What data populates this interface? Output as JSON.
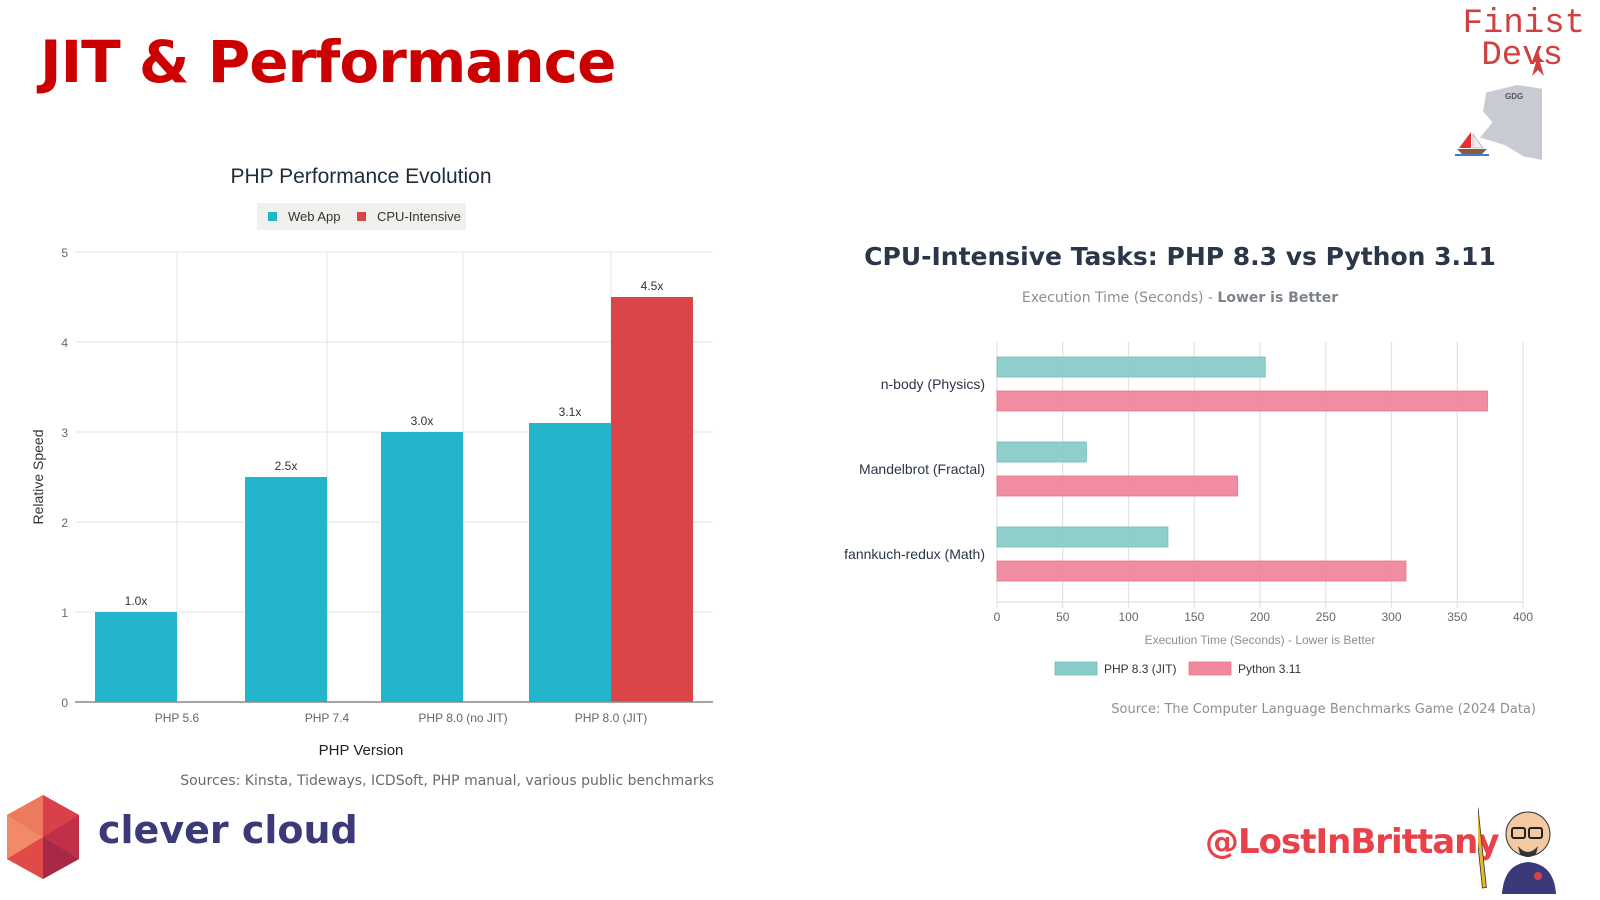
{
  "slide": {
    "title": "JIT & Performance",
    "brand_logo_text_line1": "Finist",
    "brand_logo_text_line2": "Devs",
    "gdg_label": "GDG",
    "footer_left_logo_text": "clever cloud",
    "footer_right_handle": "@LostInBrittany"
  },
  "colors": {
    "title_red": "#cc0000",
    "web_app": "#22b5cc",
    "cpu_intensive": "#db4548",
    "php83": "#8acbc8",
    "python311": "#f0879b"
  },
  "chart_data": [
    {
      "type": "bar",
      "title": "PHP Performance Evolution",
      "xlabel": "PHP Version",
      "ylabel": "Relative Speed",
      "ylim": [
        0,
        5
      ],
      "yticks": [
        "0",
        "1",
        "2",
        "3",
        "4",
        "5"
      ],
      "grid": true,
      "legend_position": "top-center",
      "categories": [
        "PHP 5.6",
        "PHP 7.4",
        "PHP 8.0 (no JIT)",
        "PHP 8.0 (JIT)"
      ],
      "series": [
        {
          "name": "Web App",
          "values": [
            1.0,
            2.5,
            3.0,
            3.1
          ],
          "labels": [
            "1.0x",
            "2.5x",
            "3.0x",
            "3.1x"
          ]
        },
        {
          "name": "CPU-Intensive",
          "values": [
            null,
            null,
            null,
            4.5
          ],
          "labels": [
            "",
            "",
            "",
            "4.5x"
          ]
        }
      ],
      "source": "Sources: Kinsta, Tideways, ICDSoft, PHP manual, various public benchmarks"
    },
    {
      "type": "bar",
      "orientation": "horizontal",
      "title": "CPU-Intensive Tasks: PHP 8.3 vs Python 3.11",
      "subtitle_prefix": "Execution Time (Seconds) - ",
      "subtitle_bold": "Lower is Better",
      "xlabel": "Execution Time (Seconds) - Lower is Better",
      "ylabel": "",
      "xlim": [
        0,
        400
      ],
      "xticks": [
        "0",
        "50",
        "100",
        "150",
        "200",
        "250",
        "300",
        "350",
        "400"
      ],
      "grid": true,
      "legend_position": "bottom-left",
      "categories": [
        "n-body (Physics)",
        "Mandelbrot (Fractal)",
        "fannkuch-redux (Math)"
      ],
      "series": [
        {
          "name": "PHP 8.3 (JIT)",
          "values": [
            204,
            68,
            130
          ]
        },
        {
          "name": "Python 3.11",
          "values": [
            373,
            183,
            311
          ]
        }
      ],
      "source": "Source: The Computer Language Benchmarks Game (2024 Data)"
    }
  ]
}
